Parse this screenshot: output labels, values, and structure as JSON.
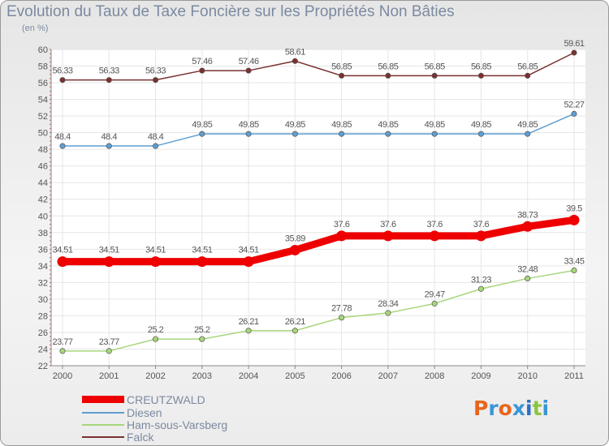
{
  "title": "Evolution du Taux de Taxe Foncière sur les Propriétés Non Bâties",
  "unit_label": "(en %)",
  "logo": {
    "text": "Proxiti",
    "colors": [
      "#e8651c",
      "#3a96d6",
      "#e8651c",
      "#3a96d6",
      "#2f6fbf",
      "#8ac43f",
      "#3a96d6"
    ]
  },
  "chart_data": {
    "type": "line",
    "x": [
      "2000",
      "2001",
      "2002",
      "2003",
      "2004",
      "2005",
      "2006",
      "2007",
      "2008",
      "2009",
      "2010",
      "2011"
    ],
    "ylim": [
      22,
      60
    ],
    "yticks": [
      "22",
      "24",
      "26",
      "28",
      "30",
      "32",
      "34",
      "36",
      "38",
      "40",
      "42",
      "44",
      "46",
      "48",
      "50",
      "52",
      "54",
      "56",
      "58",
      "60"
    ],
    "grid": true,
    "legend_position": "bottom-left",
    "series": [
      {
        "name": "CREUTZWALD",
        "color": "#ee0000",
        "emphasis": true,
        "values": [
          34.51,
          34.51,
          34.51,
          34.51,
          34.51,
          35.89,
          37.6,
          37.6,
          37.6,
          37.6,
          38.73,
          39.5
        ],
        "labels": [
          "34.51",
          "34.51",
          "34.51",
          "34.51",
          "34.51",
          "35.89",
          "37.6",
          "37.6",
          "37.6",
          "37.6",
          "38.73",
          "39.5"
        ]
      },
      {
        "name": "Diesen",
        "color": "#5f9ed1",
        "values": [
          48.4,
          48.4,
          48.4,
          49.85,
          49.85,
          49.85,
          49.85,
          49.85,
          49.85,
          49.85,
          49.85,
          52.27
        ],
        "labels": [
          "48.4",
          "48.4",
          "48.4",
          "49.85",
          "49.85",
          "49.85",
          "49.85",
          "49.85",
          "49.85",
          "49.85",
          "49.85",
          "52.27"
        ]
      },
      {
        "name": "Ham-sous-Varsberg",
        "color": "#a8d67a",
        "values": [
          23.77,
          23.77,
          25.2,
          25.2,
          26.21,
          26.21,
          27.78,
          28.34,
          29.47,
          31.23,
          32.48,
          33.45
        ],
        "labels": [
          "23.77",
          "23.77",
          "25.2",
          "25.2",
          "26.21",
          "26.21",
          "27.78",
          "28.34",
          "29.47",
          "31.23",
          "32.48",
          "33.45"
        ]
      },
      {
        "name": "Falck",
        "color": "#7a3030",
        "values": [
          56.33,
          56.33,
          56.33,
          57.46,
          57.46,
          58.61,
          56.85,
          56.85,
          56.85,
          56.85,
          56.85,
          59.61
        ],
        "labels": [
          "56.33",
          "56.33",
          "56.33",
          "57.46",
          "57.46",
          "58.61",
          "56.85",
          "56.85",
          "56.85",
          "56.85",
          "56.85",
          "59.61"
        ]
      }
    ]
  }
}
